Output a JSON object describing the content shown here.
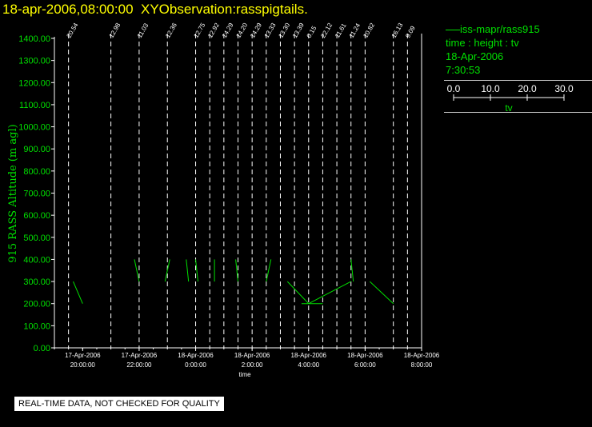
{
  "header": {
    "datetime": "18-apr-2006,08:00:00",
    "title": "XYObservation:rasspigtails."
  },
  "legend": {
    "series": "iss-mapr/rass915",
    "desc": "time : height : tv",
    "date": "18-Apr-2006",
    "time": "7:30:53",
    "scale_ticks": [
      "0.0",
      "10.0",
      "20.0",
      "30.0"
    ],
    "scale_label": "tv"
  },
  "note": "REAL-TIME DATA, NOT CHECKED FOR QUALITY",
  "chart_data": {
    "type": "line",
    "ylabel": "915 RASS Altitude (m agl)",
    "xlabel": "time",
    "ylim": [
      0,
      1400
    ],
    "yticks": [
      "0.00",
      "100.00",
      "200.00",
      "300.00",
      "400.00",
      "500.00",
      "600.00",
      "700.00",
      "800.00",
      "900.00",
      "1000.00",
      "1100.00",
      "1200.00",
      "1300.00",
      "1400.00"
    ],
    "xlim": [
      "2006-04-17 19:00",
      "2006-04-18 08:00"
    ],
    "xticks": [
      {
        "t": "2006-04-17 20:00",
        "date": "17-Apr-2006",
        "time": "20:00:00"
      },
      {
        "t": "2006-04-17 22:00",
        "date": "17-Apr-2006",
        "time": "22:00:00"
      },
      {
        "t": "2006-04-18 00:00",
        "date": "18-Apr-2006",
        "time": "0:00:00"
      },
      {
        "t": "2006-04-18 02:00",
        "date": "18-Apr-2006",
        "time": "2:00:00"
      },
      {
        "t": "2006-04-18 04:00",
        "date": "18-Apr-2006",
        "time": "4:00:00"
      },
      {
        "t": "2006-04-18 06:00",
        "date": "18-Apr-2006",
        "time": "6:00:00"
      },
      {
        "t": "2006-04-18 08:00",
        "date": "18-Apr-2006",
        "time": "8:00:00"
      }
    ],
    "profiles": [
      {
        "t": "2006-04-17 19:30",
        "label": "20.54"
      },
      {
        "t": "2006-04-17 21:00",
        "label": "12.98"
      },
      {
        "t": "2006-04-17 22:00",
        "label": "11.03"
      },
      {
        "t": "2006-04-17 23:00",
        "label": "12.36"
      },
      {
        "t": "2006-04-18 00:00",
        "label": "12.75"
      },
      {
        "t": "2006-04-18 00:30",
        "label": "12.92"
      },
      {
        "t": "2006-04-18 01:00",
        "label": "14.29"
      },
      {
        "t": "2006-04-18 01:30",
        "label": "14.20"
      },
      {
        "t": "2006-04-18 02:00",
        "label": "14.29"
      },
      {
        "t": "2006-04-18 02:30",
        "label": "13.33"
      },
      {
        "t": "2006-04-18 03:00",
        "label": "13.30"
      },
      {
        "t": "2006-04-18 03:30",
        "label": "13.39"
      },
      {
        "t": "2006-04-18 04:00",
        "label": "0.15"
      },
      {
        "t": "2006-04-18 04:30",
        "label": "22.12"
      },
      {
        "t": "2006-04-18 05:00",
        "label": "11.61"
      },
      {
        "t": "2006-04-18 05:30",
        "label": "11.24"
      },
      {
        "t": "2006-04-18 06:00",
        "label": "10.82"
      },
      {
        "t": "2006-04-18 07:00",
        "label": "16.13"
      },
      {
        "t": "2006-04-18 07:30",
        "label": "9.09"
      }
    ],
    "traces": [
      [
        {
          "t": "2006-04-17 19:40",
          "y": 300
        },
        {
          "t": "2006-04-17 20:00",
          "y": 200
        }
      ],
      [
        {
          "t": "2006-04-17 21:50",
          "y": 400
        },
        {
          "t": "2006-04-17 22:00",
          "y": 300
        }
      ],
      [
        {
          "t": "2006-04-17 23:05",
          "y": 400
        },
        {
          "t": "2006-04-17 22:55",
          "y": 300
        }
      ],
      [
        {
          "t": "2006-04-17 23:40",
          "y": 400
        },
        {
          "t": "2006-04-17 23:45",
          "y": 300
        }
      ],
      [
        {
          "t": "2006-04-18 00:00",
          "y": 400
        },
        {
          "t": "2006-04-18 00:05",
          "y": 300
        }
      ],
      [
        {
          "t": "2006-04-18 00:40",
          "y": 400
        },
        {
          "t": "2006-04-18 00:40",
          "y": 300
        }
      ],
      [
        {
          "t": "2006-04-18 01:25",
          "y": 400
        },
        {
          "t": "2006-04-18 01:30",
          "y": 300
        }
      ],
      [
        {
          "t": "2006-04-18 02:40",
          "y": 400
        },
        {
          "t": "2006-04-18 02:30",
          "y": 300
        }
      ],
      [
        {
          "t": "2006-04-18 03:15",
          "y": 300
        },
        {
          "t": "2006-04-18 04:00",
          "y": 200
        }
      ],
      [
        {
          "t": "2006-04-18 04:00",
          "y": 200
        },
        {
          "t": "2006-04-18 05:30",
          "y": 300
        }
      ],
      [
        {
          "t": "2006-04-18 03:45",
          "y": 200
        },
        {
          "t": "2006-04-18 04:30",
          "y": 200
        }
      ],
      [
        {
          "t": "2006-04-18 05:30",
          "y": 400
        },
        {
          "t": "2006-04-18 05:35",
          "y": 300
        }
      ],
      [
        {
          "t": "2006-04-18 06:10",
          "y": 300
        },
        {
          "t": "2006-04-18 07:00",
          "y": 200
        }
      ]
    ]
  }
}
